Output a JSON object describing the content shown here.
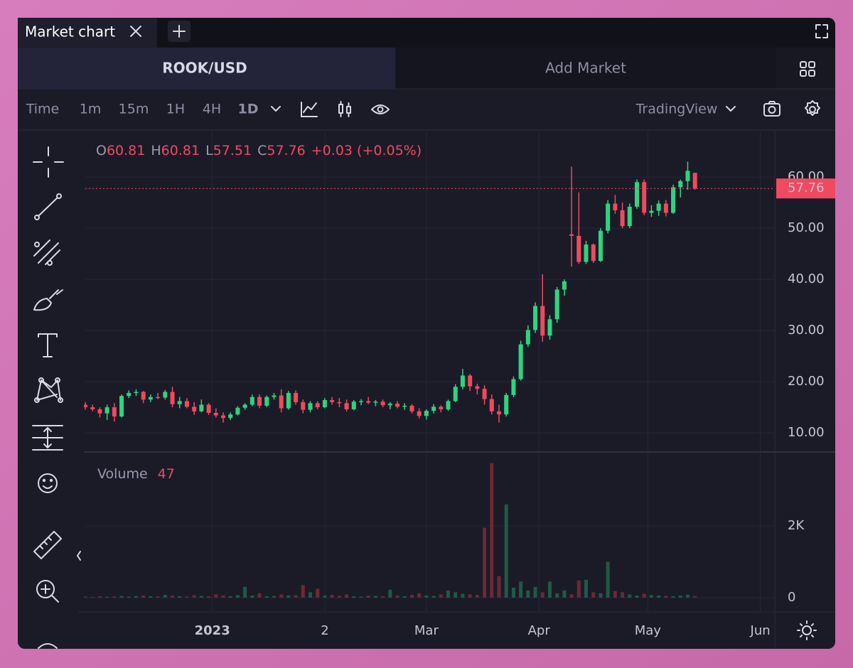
{
  "ui": {
    "tab_title": "Market chart",
    "market": "ROOK/USD",
    "add_market": "Add Market",
    "intervals": [
      "Time",
      "1m",
      "15m",
      "1H",
      "4H",
      "1D"
    ],
    "active_interval": 5,
    "provider": "TradingView"
  },
  "chart_data": {
    "type": "candlestick",
    "legend_labels": {
      "open": "O",
      "high": "H",
      "low": "L",
      "close": "C"
    },
    "change": "+0.03 (+0.05%)",
    "volume_title": "Volume",
    "colors": {
      "up": "#2ed47f",
      "down": "#ef4a5f",
      "up_volume": "#1f5a45",
      "down_volume": "#6b2a36"
    },
    "x": [
      "2022-11-27",
      "2022-11-29",
      "2022-12-01",
      "2022-12-03",
      "2022-12-05",
      "2022-12-07",
      "2022-12-09",
      "2022-12-11",
      "2022-12-13",
      "2022-12-15",
      "2022-12-17",
      "2022-12-19",
      "2022-12-21",
      "2022-12-23",
      "2022-12-25",
      "2022-12-27",
      "2022-12-29",
      "2022-12-31",
      "2023-01-02",
      "2023-01-04",
      "2023-01-06",
      "2023-01-08",
      "2023-01-10",
      "2023-01-12",
      "2023-01-14",
      "2023-01-16",
      "2023-01-18",
      "2023-01-20",
      "2023-01-22",
      "2023-01-24",
      "2023-01-26",
      "2023-01-28",
      "2023-01-30",
      "2023-02-01",
      "2023-02-03",
      "2023-02-05",
      "2023-02-07",
      "2023-02-09",
      "2023-02-11",
      "2023-02-13",
      "2023-02-15",
      "2023-02-17",
      "2023-02-19",
      "2023-02-21",
      "2023-02-23",
      "2023-02-25",
      "2023-02-27",
      "2023-03-01",
      "2023-03-03",
      "2023-03-05",
      "2023-03-07",
      "2023-03-09",
      "2023-03-11",
      "2023-03-13",
      "2023-03-15",
      "2023-03-17",
      "2023-03-19",
      "2023-03-21",
      "2023-03-23",
      "2023-03-25",
      "2023-03-27",
      "2023-03-29",
      "2023-03-31",
      "2023-04-02",
      "2023-04-04",
      "2023-04-06",
      "2023-04-08",
      "2023-04-10",
      "2023-04-12",
      "2023-04-14",
      "2023-04-16",
      "2023-04-18",
      "2023-04-20",
      "2023-04-22",
      "2023-04-24",
      "2023-04-26",
      "2023-04-28",
      "2023-04-30",
      "2023-05-02",
      "2023-05-04",
      "2023-05-06",
      "2023-05-08",
      "2023-05-10",
      "2023-05-12",
      "2023-05-14"
    ],
    "open": [
      15.5,
      15,
      14.6,
      13.8,
      15,
      13.2,
      17.2,
      17.8,
      18,
      16.5,
      17,
      16.9,
      18,
      15.6,
      16.2,
      15.1,
      14.2,
      15.5,
      13.9,
      13.4,
      12.9,
      13.6,
      14.9,
      15.5,
      17,
      15.3,
      17,
      17.3,
      14.8,
      17.8,
      16,
      14.5,
      15.8,
      15,
      16.4,
      16,
      15.8,
      14.6,
      16.1,
      16.2,
      15.9,
      16.1,
      15.4,
      15.7,
      15.1,
      15.3,
      14.2,
      13.3,
      14.3,
      15.1,
      14.6,
      16.2,
      19,
      21.2,
      19.1,
      18.6,
      16.6,
      14.2,
      13.6,
      17.4,
      20.5,
      27.3,
      30.1,
      34.8,
      29,
      32.2,
      38,
      48.8,
      48.5,
      43.4,
      46.8,
      43.6,
      49.5,
      54.8,
      53.5,
      50.4,
      54.2,
      59,
      53,
      53.4,
      54.8,
      53,
      58,
      59.2,
      60.81
    ],
    "high": [
      16,
      15.5,
      15,
      15.5,
      15.8,
      17.5,
      18.3,
      18.5,
      18.2,
      17.5,
      17.8,
      18.4,
      19,
      17,
      16.8,
      16,
      16.5,
      15.8,
      14.8,
      14,
      14,
      15.2,
      15.8,
      17.5,
      17.5,
      17.3,
      17.8,
      18.5,
      18.2,
      18.3,
      16.5,
      16.2,
      16.2,
      16.8,
      17,
      16.8,
      16.5,
      16.4,
      16.6,
      17,
      16.4,
      16.5,
      16,
      16.2,
      15.8,
      15.6,
      14.8,
      14.6,
      15.6,
      15.4,
      16.5,
      19.5,
      22.5,
      21.5,
      19.6,
      19.3,
      17.5,
      15.5,
      17.8,
      21,
      28,
      31,
      35.5,
      41,
      33,
      38.5,
      40,
      62,
      57,
      47.5,
      47,
      50,
      55.5,
      56.5,
      55,
      54.8,
      59.5,
      59.5,
      54.5,
      55.4,
      55.5,
      58.5,
      59.5,
      63,
      60.81
    ],
    "low": [
      14.5,
      14.2,
      13,
      12.5,
      12.2,
      13,
      16.8,
      17.2,
      15.8,
      16,
      16.6,
      16.5,
      15,
      14.8,
      14.8,
      13.5,
      14,
      13.5,
      13,
      12,
      12.5,
      13.4,
      14.5,
      15.2,
      14.8,
      15,
      16.5,
      14,
      14.5,
      15.5,
      13.8,
      14,
      14.6,
      14.8,
      15.5,
      15,
      14.2,
      14.4,
      15.4,
      15.6,
      15.2,
      15,
      14.6,
      14.8,
      14.5,
      13.8,
      12.8,
      12.6,
      13.8,
      14,
      14.3,
      16,
      18.5,
      18.2,
      17.5,
      15.5,
      13.6,
      12,
      13.2,
      17,
      20.2,
      26.8,
      29.5,
      27.8,
      28.2,
      31.5,
      36.8,
      42.5,
      43,
      43,
      43.2,
      43.4,
      49,
      52.8,
      50,
      50,
      53.8,
      52.5,
      52.2,
      52.4,
      52.3,
      52.8,
      56,
      57.5,
      57.51
    ],
    "close": [
      15,
      14.6,
      13.8,
      15,
      13.2,
      17.2,
      17.8,
      18,
      16.5,
      17,
      16.9,
      18,
      15.6,
      16.2,
      15.1,
      14.2,
      15.5,
      13.9,
      13.4,
      12.9,
      13.6,
      14.9,
      15.5,
      17,
      15.3,
      17,
      17.3,
      14.8,
      17.8,
      16,
      14.5,
      15.8,
      15,
      16.4,
      16,
      15.8,
      14.6,
      16.1,
      16.2,
      15.9,
      16.1,
      15.4,
      15.7,
      15.1,
      15.3,
      14.2,
      13.3,
      14.3,
      15.1,
      14.6,
      16.2,
      19,
      21.2,
      19.1,
      18.6,
      16.6,
      14.2,
      13.6,
      17.4,
      20.5,
      27.3,
      30.1,
      34.8,
      29,
      32.2,
      38,
      39.6,
      48.5,
      43.4,
      46.8,
      43.6,
      49.5,
      54.8,
      53.5,
      50.4,
      54.2,
      59,
      53,
      53.4,
      54.8,
      53,
      58,
      59.2,
      61.2,
      57.76
    ],
    "volume": [
      30,
      20,
      40,
      25,
      35,
      50,
      30,
      45,
      60,
      40,
      35,
      80,
      60,
      40,
      30,
      70,
      50,
      40,
      90,
      60,
      40,
      70,
      300,
      60,
      120,
      40,
      50,
      90,
      60,
      70,
      350,
      150,
      250,
      60,
      80,
      50,
      90,
      40,
      30,
      60,
      50,
      40,
      220,
      60,
      40,
      80,
      120,
      60,
      50,
      90,
      200,
      150,
      110,
      90,
      80,
      1950,
      3750,
      600,
      2600,
      280,
      450,
      200,
      300,
      150,
      450,
      120,
      200,
      90,
      480,
      500,
      150,
      120,
      1000,
      180,
      150,
      90,
      60,
      110,
      70,
      60,
      50,
      40,
      60,
      80,
      47
    ],
    "xlim": [
      "2022-11-27",
      "2023-06-05"
    ],
    "xticks": [
      {
        "value": "2023-01-01",
        "label": "2023"
      },
      {
        "value": "2023-02-01",
        "label": "2"
      },
      {
        "value": "2023-03-01",
        "label": "Mar"
      },
      {
        "value": "2023-04-01",
        "label": "Apr"
      },
      {
        "value": "2023-05-01",
        "label": "May"
      },
      {
        "value": "2023-06-01",
        "label": "Jun"
      }
    ],
    "ylim": [
      6.4,
      68.9
    ],
    "yticks": [
      {
        "value": 10,
        "label": "10.00"
      },
      {
        "value": 20,
        "label": "20.00"
      },
      {
        "value": 30,
        "label": "30.00"
      },
      {
        "value": 40,
        "label": "40.00"
      },
      {
        "value": 50,
        "label": "50.00"
      },
      {
        "value": 60,
        "label": "60.00"
      }
    ],
    "volume_ylim": [
      -376,
      4040
    ],
    "volume_yticks": [
      0,
      {
        "value": 2000,
        "label": "2K"
      }
    ],
    "grid": true
  }
}
